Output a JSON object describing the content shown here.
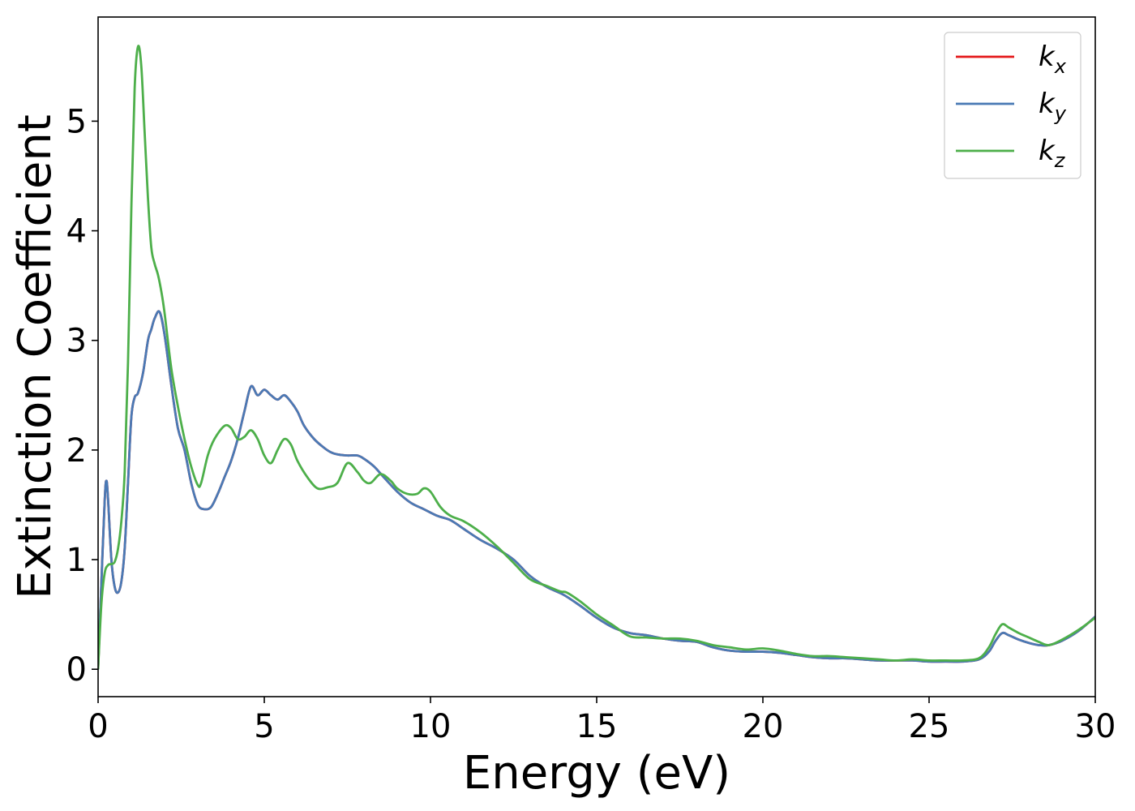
{
  "chart_data": {
    "type": "line",
    "xlabel": "Energy (eV)",
    "ylabel": "Extinction Coefficient",
    "xlim": [
      0,
      30
    ],
    "ylim": [
      -0.25,
      5.95
    ],
    "xticks": [
      0,
      5,
      10,
      15,
      20,
      25,
      30
    ],
    "yticks": [
      0,
      1,
      2,
      3,
      4,
      5
    ],
    "grid": false,
    "legend_position": "top-right",
    "series": [
      {
        "name": "k_x",
        "label_main": "k",
        "label_sub": "x",
        "color": "#e41a1c",
        "x": [
          0,
          0.1,
          0.2,
          0.25,
          0.3,
          0.4,
          0.5,
          0.6,
          0.7,
          0.8,
          0.9,
          1.0,
          1.1,
          1.2,
          1.35,
          1.5,
          1.6,
          1.7,
          1.85,
          2.0,
          2.2,
          2.4,
          2.6,
          2.8,
          3.0,
          3.2,
          3.4,
          3.6,
          3.8,
          4.0,
          4.2,
          4.4,
          4.6,
          4.8,
          5.0,
          5.2,
          5.4,
          5.6,
          5.8,
          6.0,
          6.2,
          6.5,
          6.8,
          7.0,
          7.2,
          7.5,
          7.8,
          8.0,
          8.3,
          8.6,
          9.0,
          9.4,
          9.8,
          10.2,
          10.6,
          11.0,
          11.5,
          12.0,
          12.5,
          13.0,
          13.5,
          14.0,
          14.5,
          15.0,
          15.5,
          16.0,
          16.5,
          17.0,
          17.5,
          18.0,
          18.5,
          19.0,
          19.5,
          20.0,
          20.5,
          21.0,
          21.5,
          22.0,
          22.5,
          23.0,
          23.5,
          24.0,
          24.5,
          25.0,
          25.5,
          26.0,
          26.5,
          26.8,
          27.0,
          27.2,
          27.4,
          27.7,
          28.0,
          28.3,
          28.6,
          29.0,
          29.5,
          30.0
        ],
        "y": [
          0.0,
          0.8,
          1.55,
          1.72,
          1.55,
          1.0,
          0.75,
          0.7,
          0.8,
          1.1,
          1.7,
          2.3,
          2.48,
          2.52,
          2.7,
          3.0,
          3.1,
          3.2,
          3.26,
          3.05,
          2.6,
          2.2,
          2.0,
          1.7,
          1.5,
          1.46,
          1.48,
          1.6,
          1.75,
          1.9,
          2.1,
          2.35,
          2.58,
          2.5,
          2.55,
          2.5,
          2.46,
          2.5,
          2.44,
          2.35,
          2.22,
          2.1,
          2.02,
          1.98,
          1.96,
          1.95,
          1.95,
          1.92,
          1.85,
          1.75,
          1.62,
          1.52,
          1.46,
          1.4,
          1.36,
          1.28,
          1.18,
          1.1,
          1.0,
          0.85,
          0.75,
          0.68,
          0.58,
          0.47,
          0.38,
          0.33,
          0.31,
          0.28,
          0.26,
          0.25,
          0.2,
          0.17,
          0.16,
          0.16,
          0.15,
          0.13,
          0.11,
          0.1,
          0.1,
          0.09,
          0.08,
          0.08,
          0.08,
          0.07,
          0.07,
          0.07,
          0.09,
          0.16,
          0.26,
          0.33,
          0.31,
          0.27,
          0.24,
          0.22,
          0.22,
          0.26,
          0.35,
          0.48
        ]
      },
      {
        "name": "k_y",
        "label_main": "k",
        "label_sub": "y",
        "color": "#4a7ab5",
        "x": [
          0,
          0.1,
          0.2,
          0.25,
          0.3,
          0.4,
          0.5,
          0.6,
          0.7,
          0.8,
          0.9,
          1.0,
          1.1,
          1.2,
          1.35,
          1.5,
          1.6,
          1.7,
          1.85,
          2.0,
          2.2,
          2.4,
          2.6,
          2.8,
          3.0,
          3.2,
          3.4,
          3.6,
          3.8,
          4.0,
          4.2,
          4.4,
          4.6,
          4.8,
          5.0,
          5.2,
          5.4,
          5.6,
          5.8,
          6.0,
          6.2,
          6.5,
          6.8,
          7.0,
          7.2,
          7.5,
          7.8,
          8.0,
          8.3,
          8.6,
          9.0,
          9.4,
          9.8,
          10.2,
          10.6,
          11.0,
          11.5,
          12.0,
          12.5,
          13.0,
          13.5,
          14.0,
          14.5,
          15.0,
          15.5,
          16.0,
          16.5,
          17.0,
          17.5,
          18.0,
          18.5,
          19.0,
          19.5,
          20.0,
          20.5,
          21.0,
          21.5,
          22.0,
          22.5,
          23.0,
          23.5,
          24.0,
          24.5,
          25.0,
          25.5,
          26.0,
          26.5,
          26.8,
          27.0,
          27.2,
          27.4,
          27.7,
          28.0,
          28.3,
          28.6,
          29.0,
          29.5,
          30.0
        ],
        "y": [
          0.0,
          0.8,
          1.55,
          1.72,
          1.55,
          1.0,
          0.75,
          0.7,
          0.8,
          1.1,
          1.7,
          2.3,
          2.48,
          2.52,
          2.7,
          3.0,
          3.1,
          3.2,
          3.26,
          3.05,
          2.6,
          2.2,
          2.0,
          1.7,
          1.5,
          1.46,
          1.48,
          1.6,
          1.75,
          1.9,
          2.1,
          2.35,
          2.58,
          2.5,
          2.55,
          2.5,
          2.46,
          2.5,
          2.44,
          2.35,
          2.22,
          2.1,
          2.02,
          1.98,
          1.96,
          1.95,
          1.95,
          1.92,
          1.85,
          1.75,
          1.62,
          1.52,
          1.46,
          1.4,
          1.36,
          1.28,
          1.18,
          1.1,
          1.0,
          0.85,
          0.75,
          0.68,
          0.58,
          0.47,
          0.38,
          0.33,
          0.31,
          0.28,
          0.26,
          0.25,
          0.2,
          0.17,
          0.16,
          0.16,
          0.15,
          0.13,
          0.11,
          0.1,
          0.1,
          0.09,
          0.08,
          0.08,
          0.08,
          0.07,
          0.07,
          0.07,
          0.09,
          0.16,
          0.26,
          0.33,
          0.31,
          0.27,
          0.24,
          0.22,
          0.22,
          0.26,
          0.35,
          0.48
        ]
      },
      {
        "name": "k_z",
        "label_main": "k",
        "label_sub": "z",
        "color": "#4daf4a",
        "x": [
          0,
          0.1,
          0.2,
          0.3,
          0.4,
          0.5,
          0.6,
          0.7,
          0.8,
          0.9,
          1.0,
          1.1,
          1.2,
          1.3,
          1.4,
          1.5,
          1.6,
          1.7,
          1.8,
          1.9,
          2.0,
          2.2,
          2.4,
          2.6,
          2.8,
          3.0,
          3.1,
          3.3,
          3.5,
          3.8,
          4.0,
          4.2,
          4.4,
          4.6,
          4.8,
          5.0,
          5.2,
          5.4,
          5.6,
          5.8,
          6.0,
          6.3,
          6.6,
          6.9,
          7.2,
          7.5,
          7.8,
          8.0,
          8.2,
          8.5,
          8.8,
          9.0,
          9.3,
          9.6,
          9.8,
          10.0,
          10.3,
          10.6,
          11.0,
          11.5,
          12.0,
          12.5,
          13.0,
          13.5,
          13.9,
          14.1,
          14.5,
          15.0,
          15.5,
          16.0,
          16.5,
          17.0,
          17.5,
          18.0,
          18.5,
          19.0,
          19.5,
          20.0,
          20.5,
          21.0,
          21.5,
          22.0,
          22.5,
          23.0,
          23.5,
          24.0,
          24.5,
          25.0,
          25.5,
          26.0,
          26.5,
          26.8,
          27.0,
          27.2,
          27.4,
          27.7,
          28.0,
          28.3,
          28.6,
          29.0,
          29.5,
          30.0
        ],
        "y": [
          0.0,
          0.6,
          0.88,
          0.95,
          0.96,
          0.98,
          1.1,
          1.35,
          1.8,
          2.8,
          4.2,
          5.3,
          5.68,
          5.5,
          4.9,
          4.3,
          3.85,
          3.7,
          3.6,
          3.45,
          3.25,
          2.75,
          2.4,
          2.1,
          1.85,
          1.68,
          1.7,
          1.95,
          2.1,
          2.22,
          2.2,
          2.1,
          2.12,
          2.18,
          2.1,
          1.95,
          1.88,
          2.0,
          2.1,
          2.05,
          1.9,
          1.75,
          1.65,
          1.66,
          1.7,
          1.88,
          1.8,
          1.72,
          1.7,
          1.78,
          1.72,
          1.65,
          1.6,
          1.6,
          1.65,
          1.62,
          1.48,
          1.4,
          1.35,
          1.25,
          1.12,
          0.97,
          0.82,
          0.76,
          0.71,
          0.7,
          0.62,
          0.5,
          0.4,
          0.3,
          0.29,
          0.28,
          0.28,
          0.26,
          0.22,
          0.2,
          0.18,
          0.19,
          0.17,
          0.14,
          0.12,
          0.12,
          0.11,
          0.1,
          0.09,
          0.08,
          0.09,
          0.08,
          0.08,
          0.08,
          0.1,
          0.2,
          0.32,
          0.41,
          0.38,
          0.33,
          0.29,
          0.25,
          0.22,
          0.27,
          0.36,
          0.47
        ]
      }
    ]
  }
}
